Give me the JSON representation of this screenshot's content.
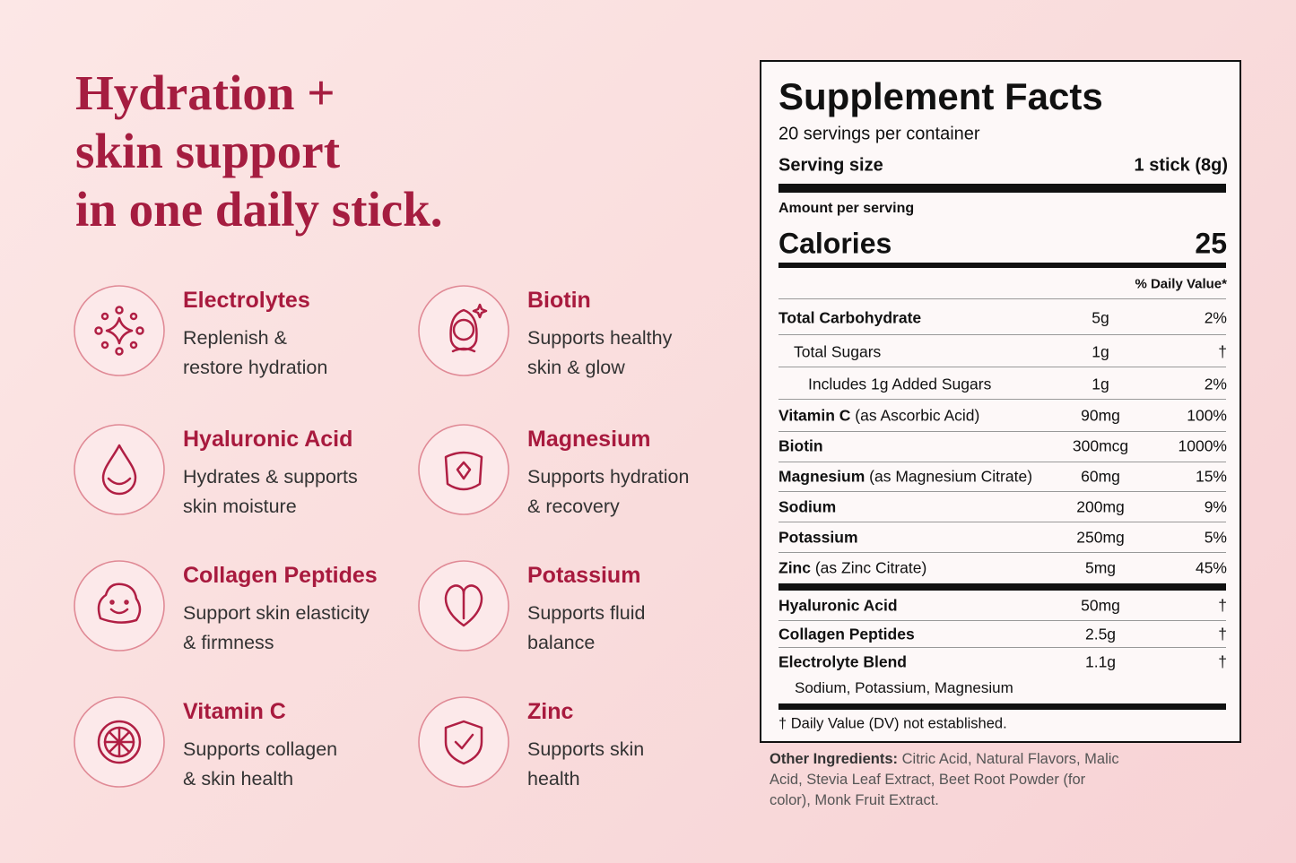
{
  "headline": [
    "Hydration +",
    "skin support",
    "in one daily stick."
  ],
  "benefits": [
    {
      "name": "Electrolytes",
      "desc": [
        "Replenish &",
        "restore hydration"
      ]
    },
    {
      "name": "Biotin",
      "desc": [
        "Supports healthy",
        "skin & glow"
      ]
    },
    {
      "name": "Hyaluronic Acid",
      "desc": [
        "Hydrates & supports",
        "skin moisture"
      ]
    },
    {
      "name": "Magnesium",
      "desc": [
        "Supports hydration",
        "& recovery"
      ]
    },
    {
      "name": "Collagen Peptides",
      "desc": [
        "Support skin elasticity",
        "& firmness"
      ]
    },
    {
      "name": "Potassium",
      "desc": [
        "Supports fluid",
        "balance"
      ]
    },
    {
      "name": "Vitamin C",
      "desc": [
        "Supports collagen",
        "& skin health"
      ]
    },
    {
      "name": "Zinc",
      "desc": [
        "Supports skin",
        "health"
      ]
    }
  ],
  "facts": {
    "title": "Supplement Facts",
    "servings": "20 servings per container",
    "serving_size_label": "Serving size",
    "serving_size_value": "1 stick (8g)",
    "amount_label": "Amount per serving",
    "calories_label": "Calories",
    "calories_value": "25",
    "dv_header": "% Daily Value*",
    "rows": [
      {
        "name": "Total Carbohydrate",
        "amount": "5g",
        "dv": "2%"
      },
      {
        "name": "Total Sugars",
        "amount": "1g",
        "dv": "†"
      },
      {
        "name": "Includes 1g Added Sugars",
        "amount": "1g",
        "dv": "2%"
      },
      {
        "name": "Vitamin C",
        "note": "(as Ascorbic Acid)",
        "amount": "90mg",
        "dv": "100%"
      },
      {
        "name": "Biotin",
        "amount": "300mcg",
        "dv": "1000%"
      },
      {
        "name": "Magnesium",
        "note": "(as Magnesium Citrate)",
        "amount": "60mg",
        "dv": "15%"
      },
      {
        "name": "Sodium",
        "amount": "200mg",
        "dv": "9%"
      },
      {
        "name": "Potassium",
        "amount": "250mg",
        "dv": "5%"
      },
      {
        "name": "Zinc",
        "note": "(as Zinc Citrate)",
        "amount": "5mg",
        "dv": "45%"
      },
      {
        "name": "Hyaluronic Acid",
        "amount": "50mg",
        "dv": "†"
      },
      {
        "name": "Collagen Peptides",
        "amount": "2.5g",
        "dv": "†"
      },
      {
        "name": "Electrolyte Blend",
        "amount": "1.1g",
        "dv": "†"
      }
    ],
    "blend_detail": "Sodium, Potassium, Magnesium",
    "footnote": "† Daily Value (DV) not established."
  },
  "other_ingredients": {
    "label": "Other Ingredients:",
    "text": "Citric Acid, Natural Flavors, Malic Acid, Stevia Leaf Extract, Beet Root Powder (for color), Monk Fruit Extract."
  }
}
